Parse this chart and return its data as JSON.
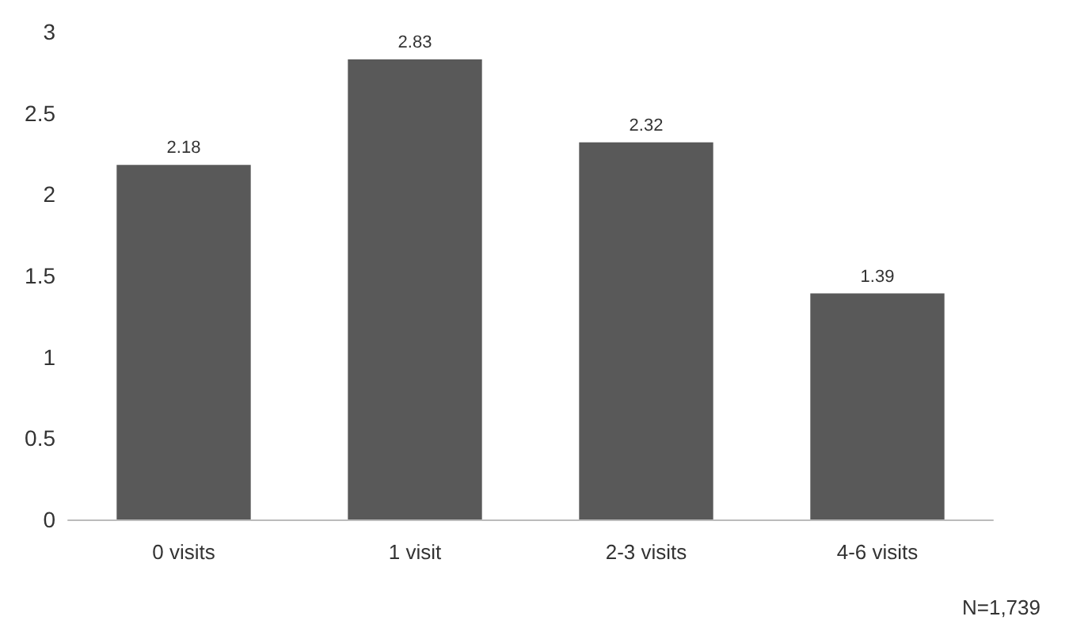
{
  "chart_data": {
    "type": "bar",
    "categories": [
      "0 visits",
      "1 visit",
      "2-3 visits",
      "4-6 visits"
    ],
    "values": [
      2.18,
      2.83,
      2.32,
      1.39
    ],
    "color": "#595959",
    "data_labels": true,
    "ylim": [
      0,
      3
    ],
    "yticks": [
      0,
      0.5,
      1,
      1.5,
      2,
      2.5,
      3
    ],
    "grid": false,
    "annotations": [
      "N=1,739"
    ]
  }
}
